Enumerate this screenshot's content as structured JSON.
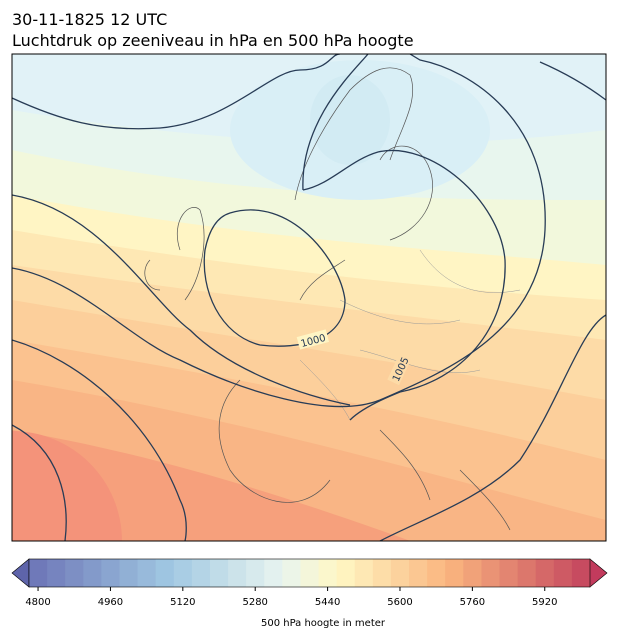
{
  "header": {
    "date": "30-11-1825 12 UTC",
    "title": "Luchtdruk op zeeniveau in hPa en 500 hPa hoogte"
  },
  "map": {
    "contour_labels": [
      1000,
      1005
    ]
  },
  "colorbar": {
    "label": "500 hPa hoogte in meter",
    "lim": [
      4780,
      6020
    ],
    "step": 40,
    "ticks": [
      4800,
      4960,
      5120,
      5280,
      5440,
      5600,
      5760,
      5920
    ]
  }
}
